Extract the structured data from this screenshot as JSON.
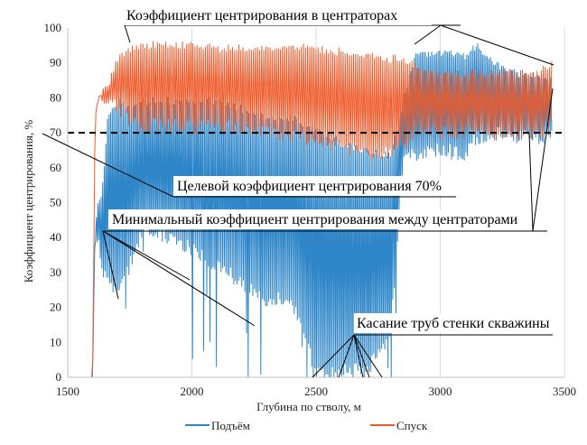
{
  "chart_data": {
    "type": "line",
    "xlabel": "Глубина по стволу, м",
    "ylabel": "Коэффициент центрирования, %",
    "xlim": [
      1500,
      3500
    ],
    "ylim": [
      0,
      100
    ],
    "x_ticks": [
      1500,
      2000,
      2500,
      3000,
      3500
    ],
    "y_ticks": [
      0,
      10,
      20,
      30,
      40,
      50,
      60,
      70,
      80,
      90,
      100
    ],
    "grid": "vertical",
    "legend_position": "bottom",
    "target_line": {
      "value": 70,
      "style": "dashed",
      "color": "#000000"
    },
    "annotations": [
      "Коэффициент центрирования в центраторах",
      "Целевой коэффициент центрирования 70%",
      "Минимальный коэффициент центрирования между центраторами",
      "Касание труб стенки скважины"
    ],
    "series": [
      {
        "name": "Подъём",
        "color": "#2E86C8",
        "envelope": {
          "x": [
            1500,
            1600,
            1610,
            1620,
            1640,
            1660,
            1700,
            1750,
            1800,
            1900,
            2000,
            2100,
            2200,
            2300,
            2400,
            2500,
            2600,
            2700,
            2800,
            2850,
            2900,
            3000,
            3100,
            3150,
            3200,
            3250,
            3300,
            3400,
            3450
          ],
          "high": [
            0,
            0,
            42,
            50,
            55,
            75,
            80,
            78,
            80,
            80,
            80,
            80,
            78,
            75,
            75,
            72,
            68,
            66,
            64,
            80,
            93,
            94,
            93,
            96,
            92,
            90,
            88,
            87,
            86
          ],
          "low": [
            0,
            0,
            36,
            38,
            28,
            27,
            22,
            30,
            40,
            38,
            35,
            30,
            25,
            20,
            20,
            0,
            0,
            0,
            10,
            60,
            62,
            63,
            62,
            67,
            68,
            68,
            67,
            67,
            67
          ]
        }
      },
      {
        "name": "Спуск",
        "color": "#EF5B2B",
        "envelope": {
          "x": [
            1500,
            1600,
            1610,
            1620,
            1640,
            1660,
            1700,
            1750,
            1800,
            1900,
            2000,
            2100,
            2200,
            2300,
            2400,
            2500,
            2600,
            2700,
            2800,
            2850,
            2900,
            3000,
            3100,
            3200,
            3300,
            3400,
            3450
          ],
          "high": [
            0,
            0,
            72,
            80,
            83,
            84,
            92,
            95,
            96,
            96,
            96,
            95,
            95,
            95,
            96,
            95,
            94,
            93,
            92,
            92,
            90,
            88,
            88,
            88,
            88,
            88,
            91
          ],
          "low": [
            0,
            0,
            72,
            76,
            78,
            78,
            76,
            72,
            70,
            70,
            70,
            70,
            70,
            68,
            67,
            66,
            64,
            63,
            62,
            64,
            68,
            68,
            68,
            68,
            68,
            68,
            70
          ]
        }
      }
    ]
  }
}
